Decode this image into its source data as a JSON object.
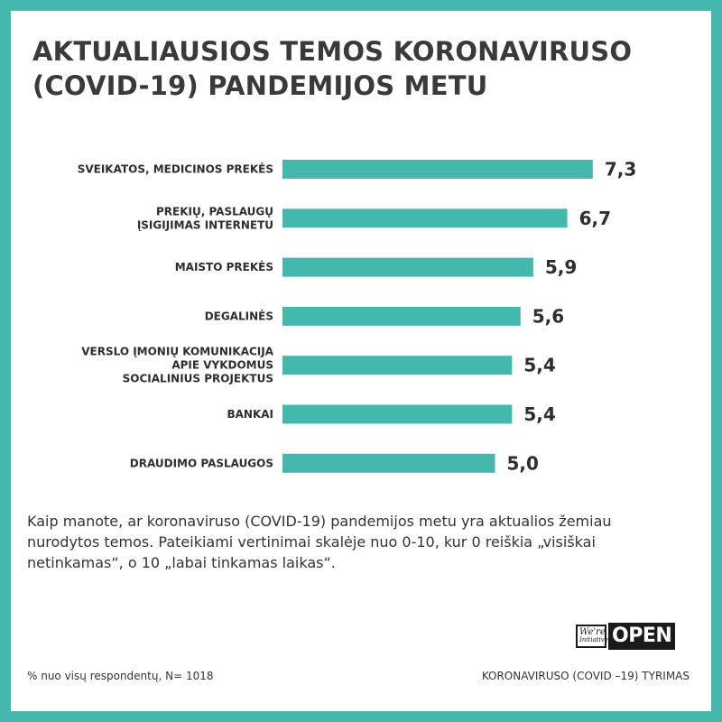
{
  "title_lines": [
    "AKTUALIAUSIOS TEMOS KORONAVIRUSO",
    "(COVID-19) PANDEMIJOS METU"
  ],
  "chart_data": {
    "type": "bar",
    "orientation": "horizontal",
    "title": "AKTUALIAUSIOS TEMOS KORONAVIRUSO (COVID-19) PANDEMIJOS METU",
    "categories": [
      [
        "SVEIKATOS, MEDICINOS PREKĖS"
      ],
      [
        "PREKIŲ, PASLAUGŲ",
        "ĮSIGIJIMAS INTERNETU"
      ],
      [
        "MAISTO PREKĖS"
      ],
      [
        "DEGALINĖS"
      ],
      [
        "VERSLO ĮMONIŲ KOMUNIKACIJA",
        "APIE VYKDOMUS",
        "SOCIALINIUS PROJEKTUS"
      ],
      [
        "BANKAI"
      ],
      [
        "DRAUDIMO PASLAUGOS"
      ]
    ],
    "values": [
      7.3,
      6.7,
      5.9,
      5.6,
      5.4,
      5.4,
      5.0
    ],
    "value_labels": [
      "7,3",
      "6,7",
      "5,9",
      "5,6",
      "5,4",
      "5,4",
      "5,0"
    ],
    "xlim": [
      0,
      10
    ],
    "grid": false,
    "bar_color": "#44b8ad"
  },
  "description": "Kaip manote, ar koronaviruso (COVID-19) pandemijos metu yra aktualios žemiau nurodytos temos. Pateikiami vertinimai skalėje nuo 0-10, kur 0 reiškia „visiškai netinkamas“, o 10 „labai tinkamas laikas“.",
  "logo": {
    "were": "We're",
    "initiative": "Initiative",
    "open": "OPEN"
  },
  "footnote_left": "% nuo visų respondentų, N= 1018",
  "footnote_right": "KORONAVIRUSO (COVID –19) TYRIMAS",
  "colors": {
    "frame": "#44b8ad",
    "bar": "#44b8ad",
    "text": "#333333",
    "background": "#ffffff"
  }
}
